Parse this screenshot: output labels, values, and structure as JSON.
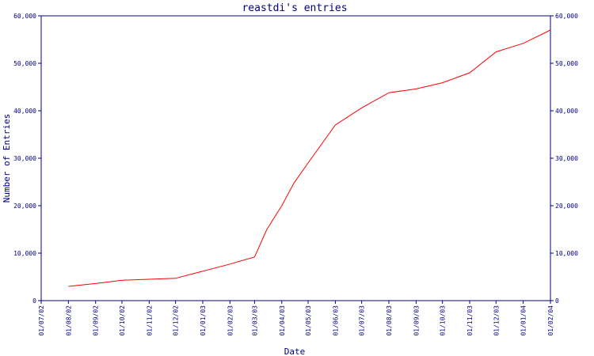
{
  "chart_data": {
    "type": "line",
    "title": "reastdi's entries",
    "xlabel": "Date",
    "ylabel": "Number of Entries",
    "ylim": [
      0,
      60000
    ],
    "y_ticks": [
      "0",
      "10,000",
      "20,000",
      "30,000",
      "40,000",
      "50,000",
      "60,000"
    ],
    "y_tick_values": [
      0,
      10000,
      20000,
      30000,
      40000,
      50000,
      60000
    ],
    "x_ticks": [
      "01/07/02",
      "01/08/02",
      "01/09/02",
      "01/10/02",
      "01/11/02",
      "01/12/02",
      "01/01/03",
      "01/02/03",
      "01/03/03",
      "01/04/03",
      "01/05/03",
      "01/06/03",
      "01/07/03",
      "01/08/03",
      "01/09/03",
      "01/10/03",
      "01/11/03",
      "01/12/03",
      "01/01/04",
      "01/02/04"
    ],
    "grid": false,
    "right_axis_mirror": true,
    "colors": {
      "line": "#ff0000",
      "axes": "#000080",
      "text": "#000080"
    },
    "series": [
      {
        "x": [
          "2002-08-01",
          "2002-09-01",
          "2002-10-01",
          "2002-11-01",
          "2002-12-01",
          "2003-01-01",
          "2003-02-01",
          "2003-03-01",
          "2003-03-15",
          "2003-04-01",
          "2003-04-15",
          "2003-05-01",
          "2003-06-01",
          "2003-07-01",
          "2003-08-01",
          "2003-09-01",
          "2003-10-01",
          "2003-11-01",
          "2003-12-01",
          "2004-01-01",
          "2004-02-01"
        ],
        "values": [
          3000,
          3600,
          4300,
          4500,
          4700,
          6200,
          7700,
          9200,
          15000,
          20000,
          24800,
          29000,
          37000,
          40600,
          43800,
          44600,
          45900,
          48000,
          52400,
          54200,
          57000
        ]
      }
    ]
  }
}
